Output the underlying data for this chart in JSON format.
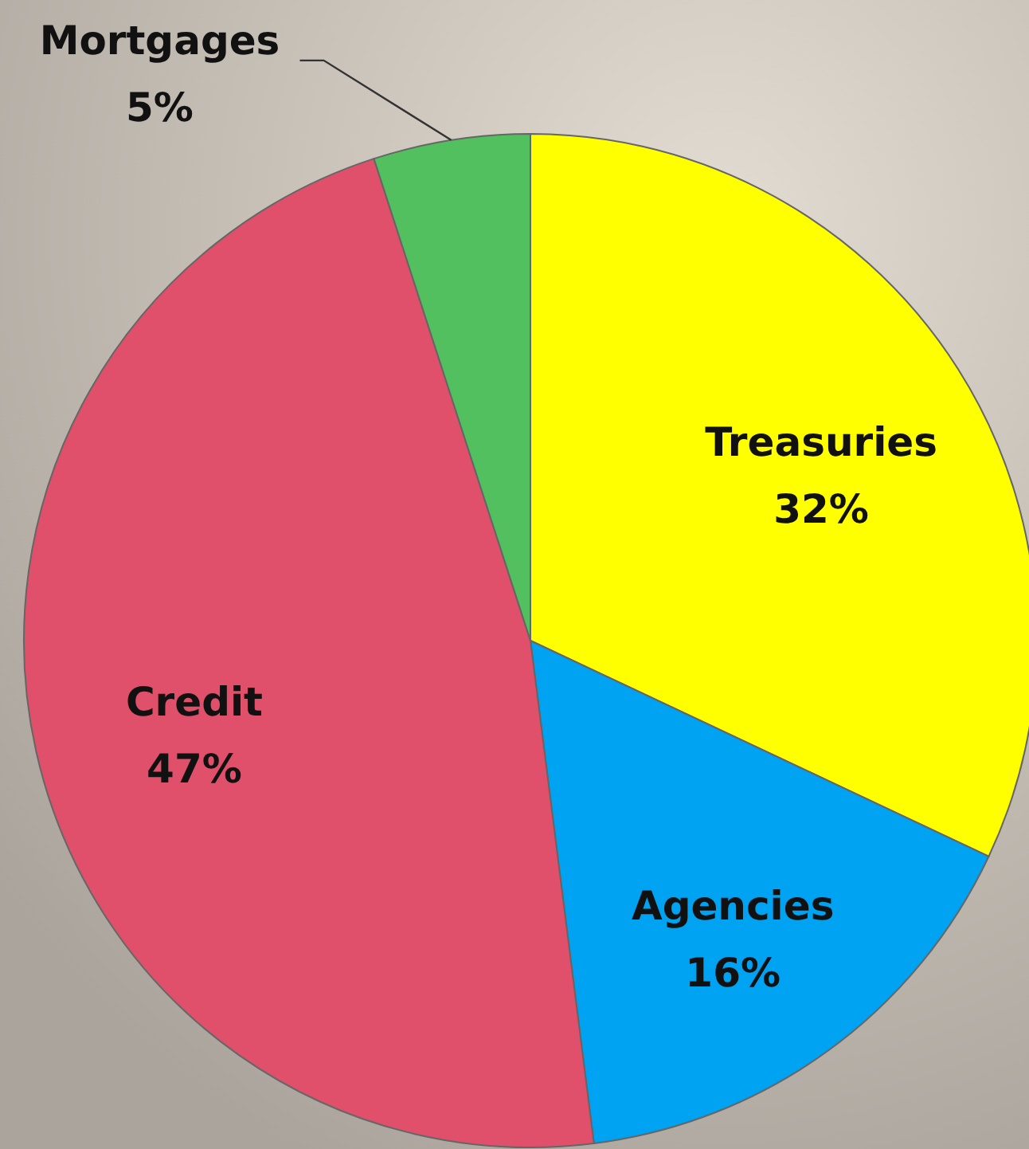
{
  "chart_data": {
    "type": "pie",
    "categories": [
      "Treasuries",
      "Agencies",
      "Credit",
      "Mortgages"
    ],
    "values": [
      32,
      16,
      47,
      5
    ],
    "colors": [
      "#ffff00",
      "#00a2f2",
      "#e0506a",
      "#52c05e"
    ],
    "value_labels": [
      "32%",
      "16%",
      "47%",
      "5%"
    ]
  }
}
